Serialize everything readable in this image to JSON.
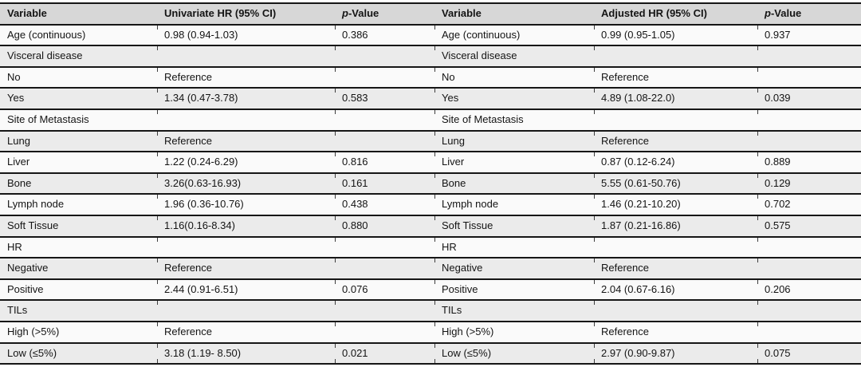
{
  "colors": {
    "header_bg": "#d7d7d7",
    "row_bg": "#fafafa",
    "row_alt_bg": "#ebebeb",
    "rule": "#161616",
    "text": "#141414",
    "tick": "#3d3d3d"
  },
  "table": {
    "columns": [
      {
        "label": "Variable"
      },
      {
        "label": "Univariate HR (95% CI)"
      },
      {
        "label_italic": "p",
        "label_rest": "-Value"
      },
      {
        "label": "Variable"
      },
      {
        "label": "Adjusted HR (95% CI)"
      },
      {
        "label_italic": "p",
        "label_rest": "-Value"
      }
    ],
    "rows": [
      [
        "Age (continuous)",
        "0.98 (0.94-1.03)",
        "0.386",
        "Age (continuous)",
        "0.99 (0.95-1.05)",
        "0.937"
      ],
      [
        "Visceral disease",
        "",
        "",
        "Visceral disease",
        "",
        ""
      ],
      [
        "No",
        "Reference",
        "",
        "No",
        "Reference",
        ""
      ],
      [
        "Yes",
        "1.34 (0.47-3.78)",
        "0.583",
        "Yes",
        "4.89 (1.08-22.0)",
        "0.039"
      ],
      [
        "Site of Metastasis",
        "",
        "",
        "Site of Metastasis",
        "",
        ""
      ],
      [
        "Lung",
        "Reference",
        "",
        "Lung",
        "Reference",
        ""
      ],
      [
        "Liver",
        "1.22 (0.24-6.29)",
        "0.816",
        "Liver",
        "0.87 (0.12-6.24)",
        "0.889"
      ],
      [
        "Bone",
        "3.26(0.63-16.93)",
        "0.161",
        "Bone",
        "5.55 (0.61-50.76)",
        "0.129"
      ],
      [
        "Lymph node",
        "1.96 (0.36-10.76)",
        "0.438",
        "Lymph node",
        "1.46 (0.21-10.20)",
        "0.702"
      ],
      [
        "Soft Tissue",
        "1.16(0.16-8.34)",
        "0.880",
        "Soft Tissue",
        "1.87 (0.21-16.86)",
        "0.575"
      ],
      [
        "HR",
        "",
        "",
        "HR",
        "",
        ""
      ],
      [
        "Negative",
        "Reference",
        "",
        "Negative",
        "Reference",
        ""
      ],
      [
        "Positive",
        "2.44 (0.91-6.51)",
        "0.076",
        "Positive",
        "2.04 (0.67-6.16)",
        "0.206"
      ],
      [
        "TILs",
        "",
        "",
        "TILs",
        "",
        ""
      ],
      [
        "High (>5%)",
        "Reference",
        "",
        "High (>5%)",
        "Reference",
        ""
      ],
      [
        "Low (≤5%)",
        "3.18 (1.19- 8.50)",
        "0.021",
        "Low (≤5%)",
        "2.97 (0.90-9.87)",
        "0.075"
      ]
    ]
  }
}
